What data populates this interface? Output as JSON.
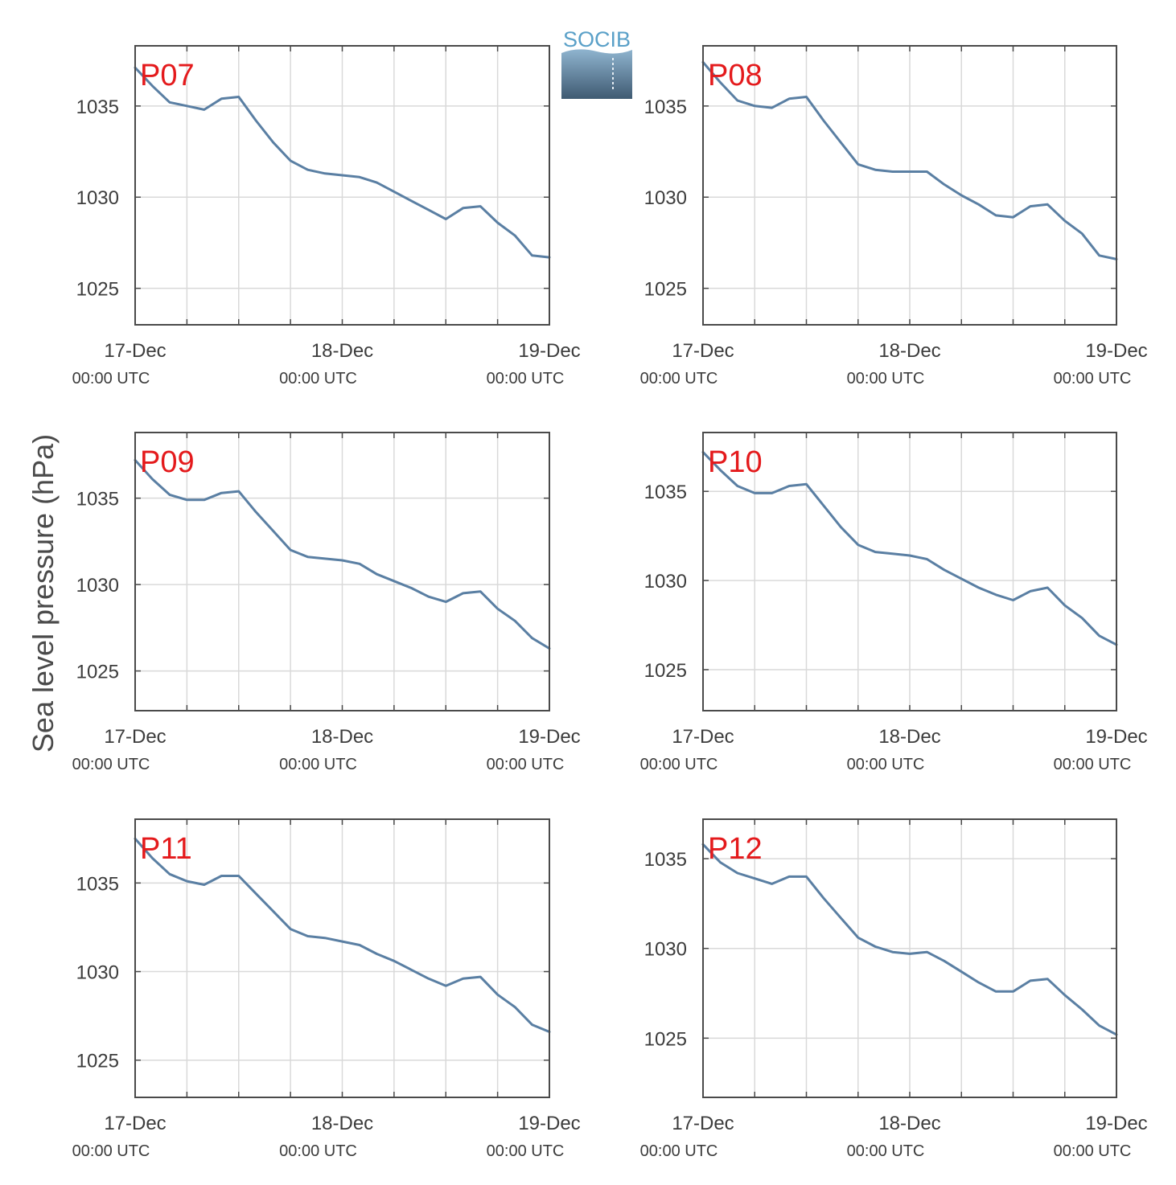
{
  "figure": {
    "ylabel": "Sea level pressure (hPa)",
    "logo_text": "SOCIB"
  },
  "colors": {
    "line": "#5a7fa3",
    "panel_label": "#e41a1c",
    "grid": "#d9d9d9",
    "axis": "#4a4a4a",
    "logo_text": "#5aa0c8",
    "logo_top": "#8fb4cf",
    "logo_bottom": "#3f5a72"
  },
  "chart_data": [
    {
      "type": "line",
      "label": "P07",
      "x_ticks": [
        {
          "date": "17-Dec",
          "time": "00:00 UTC"
        },
        {
          "date": "18-Dec",
          "time": "00:00 UTC"
        },
        {
          "date": "19-Dec",
          "time": "00:00 UTC"
        }
      ],
      "yticks": [
        1025,
        1030,
        1035
      ],
      "ylim": [
        1023,
        1038.3
      ],
      "x_hours": [
        0,
        2,
        4,
        6,
        8,
        10,
        12,
        14,
        16,
        18,
        20,
        22,
        24,
        26,
        28,
        30,
        32,
        34,
        36,
        38,
        40,
        42,
        44,
        46,
        48
      ],
      "values": [
        1037.1,
        1036.1,
        1035.2,
        1035.0,
        1034.8,
        1035.4,
        1035.5,
        1034.2,
        1033.0,
        1032.0,
        1031.5,
        1031.3,
        1031.2,
        1031.1,
        1030.8,
        1030.3,
        1029.8,
        1029.3,
        1028.8,
        1029.4,
        1029.5,
        1028.6,
        1027.9,
        1026.8,
        1026.7
      ]
    },
    {
      "type": "line",
      "label": "P08",
      "x_ticks": [
        {
          "date": "17-Dec",
          "time": "00:00 UTC"
        },
        {
          "date": "18-Dec",
          "time": "00:00 UTC"
        },
        {
          "date": "19-Dec",
          "time": "00:00 UTC"
        }
      ],
      "yticks": [
        1025,
        1030,
        1035
      ],
      "ylim": [
        1023,
        1038.3
      ],
      "x_hours": [
        0,
        2,
        4,
        6,
        8,
        10,
        12,
        14,
        16,
        18,
        20,
        22,
        24,
        26,
        28,
        30,
        32,
        34,
        36,
        38,
        40,
        42,
        44,
        46,
        48
      ],
      "values": [
        1037.4,
        1036.3,
        1035.3,
        1035.0,
        1034.9,
        1035.4,
        1035.5,
        1034.2,
        1033.0,
        1031.8,
        1031.5,
        1031.4,
        1031.4,
        1031.4,
        1030.7,
        1030.1,
        1029.6,
        1029.0,
        1028.9,
        1029.5,
        1029.6,
        1028.7,
        1028.0,
        1026.8,
        1026.6
      ]
    },
    {
      "type": "line",
      "label": "P09",
      "x_ticks": [
        {
          "date": "17-Dec",
          "time": "00:00 UTC"
        },
        {
          "date": "18-Dec",
          "time": "00:00 UTC"
        },
        {
          "date": "19-Dec",
          "time": "00:00 UTC"
        }
      ],
      "yticks": [
        1025,
        1030,
        1035
      ],
      "ylim": [
        1022.7,
        1038.8
      ],
      "x_hours": [
        0,
        2,
        4,
        6,
        8,
        10,
        12,
        14,
        16,
        18,
        20,
        22,
        24,
        26,
        28,
        30,
        32,
        34,
        36,
        38,
        40,
        42,
        44,
        46,
        48
      ],
      "values": [
        1037.2,
        1036.1,
        1035.2,
        1034.9,
        1034.9,
        1035.3,
        1035.4,
        1034.2,
        1033.1,
        1032.0,
        1031.6,
        1031.5,
        1031.4,
        1031.2,
        1030.6,
        1030.2,
        1029.8,
        1029.3,
        1029.0,
        1029.5,
        1029.6,
        1028.6,
        1027.9,
        1026.9,
        1026.3
      ]
    },
    {
      "type": "line",
      "label": "P10",
      "x_ticks": [
        {
          "date": "17-Dec",
          "time": "00:00 UTC"
        },
        {
          "date": "18-Dec",
          "time": "00:00 UTC"
        },
        {
          "date": "19-Dec",
          "time": "00:00 UTC"
        }
      ],
      "yticks": [
        1025,
        1030,
        1035
      ],
      "ylim": [
        1022.7,
        1038.3
      ],
      "x_hours": [
        0,
        2,
        4,
        6,
        8,
        10,
        12,
        14,
        16,
        18,
        20,
        22,
        24,
        26,
        28,
        30,
        32,
        34,
        36,
        38,
        40,
        42,
        44,
        46,
        48
      ],
      "values": [
        1037.2,
        1036.2,
        1035.3,
        1034.9,
        1034.9,
        1035.3,
        1035.4,
        1034.2,
        1033.0,
        1032.0,
        1031.6,
        1031.5,
        1031.4,
        1031.2,
        1030.6,
        1030.1,
        1029.6,
        1029.2,
        1028.9,
        1029.4,
        1029.6,
        1028.6,
        1027.9,
        1026.9,
        1026.4
      ]
    },
    {
      "type": "line",
      "label": "P11",
      "x_ticks": [
        {
          "date": "17-Dec",
          "time": "00:00 UTC"
        },
        {
          "date": "18-Dec",
          "time": "00:00 UTC"
        },
        {
          "date": "19-Dec",
          "time": "00:00 UTC"
        }
      ],
      "yticks": [
        1025,
        1030,
        1035
      ],
      "ylim": [
        1022.9,
        1038.6
      ],
      "x_hours": [
        0,
        2,
        4,
        6,
        8,
        10,
        12,
        14,
        16,
        18,
        20,
        22,
        24,
        26,
        28,
        30,
        32,
        34,
        36,
        38,
        40,
        42,
        44,
        46,
        48
      ],
      "values": [
        1037.5,
        1036.4,
        1035.5,
        1035.1,
        1034.9,
        1035.4,
        1035.4,
        1034.4,
        1033.4,
        1032.4,
        1032.0,
        1031.9,
        1031.7,
        1031.5,
        1031.0,
        1030.6,
        1030.1,
        1029.6,
        1029.2,
        1029.6,
        1029.7,
        1028.7,
        1028.0,
        1027.0,
        1026.6
      ]
    },
    {
      "type": "line",
      "label": "P12",
      "x_ticks": [
        {
          "date": "17-Dec",
          "time": "00:00 UTC"
        },
        {
          "date": "18-Dec",
          "time": "00:00 UTC"
        },
        {
          "date": "19-Dec",
          "time": "00:00 UTC"
        }
      ],
      "yticks": [
        1025,
        1030,
        1035
      ],
      "ylim": [
        1021.7,
        1037.2
      ],
      "x_hours": [
        0,
        2,
        4,
        6,
        8,
        10,
        12,
        14,
        16,
        18,
        20,
        22,
        24,
        26,
        28,
        30,
        32,
        34,
        36,
        38,
        40,
        42,
        44,
        46,
        48
      ],
      "values": [
        1035.8,
        1034.8,
        1034.2,
        1033.9,
        1033.6,
        1034.0,
        1034.0,
        1032.8,
        1031.7,
        1030.6,
        1030.1,
        1029.8,
        1029.7,
        1029.8,
        1029.3,
        1028.7,
        1028.1,
        1027.6,
        1027.6,
        1028.2,
        1028.3,
        1027.4,
        1026.6,
        1025.7,
        1025.2
      ]
    }
  ]
}
